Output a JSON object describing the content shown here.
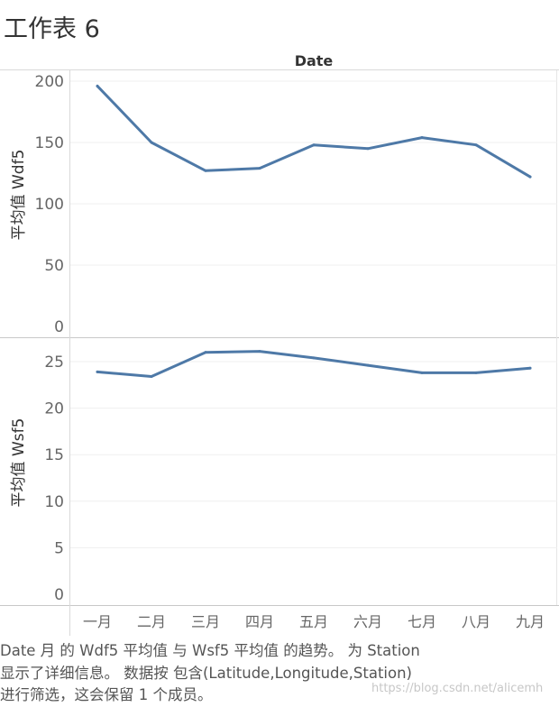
{
  "sheet": {
    "title": "工作表 6"
  },
  "chart_data": {
    "type": "line",
    "title": "工作表 6",
    "xlabel": "Date",
    "categories": [
      "一月",
      "二月",
      "三月",
      "四月",
      "五月",
      "六月",
      "七月",
      "八月",
      "九月"
    ],
    "series": [
      {
        "name": "平均值 Wdf5",
        "ylabel": "平均值 Wdf5",
        "values": [
          196,
          150,
          127,
          129,
          148,
          145,
          154,
          148,
          122
        ],
        "ylim": [
          0,
          210
        ],
        "ticks": [
          0,
          50,
          100,
          150,
          200
        ],
        "color": "#4e79a7"
      },
      {
        "name": "平均值 Wsf5",
        "ylabel": "平均值 Wsf5",
        "values": [
          23.9,
          23.4,
          26.0,
          26.1,
          25.4,
          24.6,
          23.8,
          23.8,
          24.3
        ],
        "ylim": [
          0,
          27
        ],
        "ticks": [
          0,
          5,
          10,
          15,
          20,
          25
        ],
        "color": "#4e79a7"
      }
    ],
    "grid": true
  },
  "caption": {
    "lines": [
      "Date 月 的 Wdf5 平均值 与 Wsf5 平均值 的趋势。 为 Station",
      "显示了详细信息。 数据按 包含(Latitude,Longitude,Station)",
      "进行筛选，这会保留 1 个成员。"
    ]
  },
  "watermark": "https://blog.csdn.net/alicemh"
}
